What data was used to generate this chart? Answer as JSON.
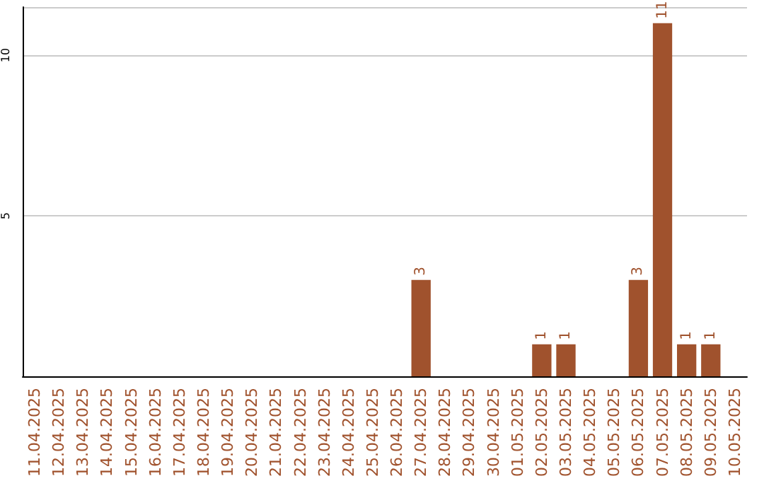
{
  "chart_data": {
    "type": "bar",
    "categories": [
      "11.04.2025",
      "12.04.2025",
      "13.04.2025",
      "14.04.2025",
      "15.04.2025",
      "16.04.2025",
      "17.04.2025",
      "18.04.2025",
      "19.04.2025",
      "20.04.2025",
      "21.04.2025",
      "22.04.2025",
      "23.04.2025",
      "24.04.2025",
      "25.04.2025",
      "26.04.2025",
      "27.04.2025",
      "28.04.2025",
      "29.04.2025",
      "30.04.2025",
      "01.05.2025",
      "02.05.2025",
      "03.05.2025",
      "04.05.2025",
      "05.05.2025",
      "06.05.2025",
      "07.05.2025",
      "08.05.2025",
      "09.05.2025",
      "10.05.2025"
    ],
    "values": [
      0,
      0,
      0,
      0,
      0,
      0,
      0,
      0,
      0,
      0,
      0,
      0,
      0,
      0,
      0,
      0,
      3,
      0,
      0,
      0,
      0,
      1,
      1,
      0,
      0,
      3,
      11,
      1,
      1,
      0
    ],
    "value_labels": [
      null,
      null,
      null,
      null,
      null,
      null,
      null,
      null,
      null,
      null,
      null,
      null,
      null,
      null,
      null,
      null,
      "3",
      null,
      null,
      null,
      null,
      "1",
      "1",
      null,
      null,
      "3",
      "11",
      "1",
      "1",
      null
    ],
    "color": "#a0522d",
    "ylim": [
      0,
      11.5
    ],
    "yticks": [
      5,
      10
    ],
    "grid": "y"
  }
}
